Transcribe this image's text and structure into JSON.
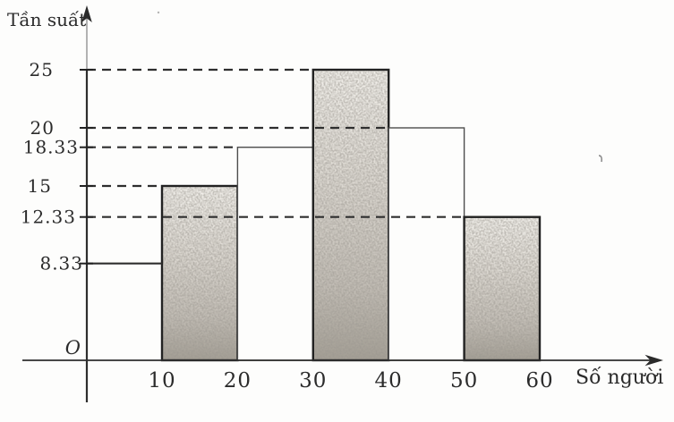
{
  "chart_data": {
    "type": "bar",
    "variant": "frequency-histogram",
    "title": "",
    "ylabel": "Tần suất",
    "xlabel": "Số người",
    "origin_label": "O",
    "x_tick_labels": [
      "10",
      "20",
      "30",
      "40",
      "50",
      "60"
    ],
    "y_tick_labels": [
      "25",
      "20",
      "18.33",
      "15",
      "12.33",
      "8.33"
    ],
    "bins": [
      [
        0,
        10
      ],
      [
        10,
        20
      ],
      [
        20,
        30
      ],
      [
        30,
        40
      ],
      [
        40,
        50
      ],
      [
        50,
        60
      ]
    ],
    "values": [
      8.33,
      15,
      18.33,
      25,
      20,
      12.33
    ],
    "bars": [
      {
        "from": 0,
        "to": 10,
        "value": 8.33,
        "style": "open-top-only"
      },
      {
        "from": 10,
        "to": 20,
        "value": 15,
        "style": "shaded"
      },
      {
        "from": 20,
        "to": 30,
        "value": 18.33,
        "style": "white"
      },
      {
        "from": 30,
        "to": 40,
        "value": 25,
        "style": "shaded"
      },
      {
        "from": 40,
        "to": 50,
        "value": 20,
        "style": "white"
      },
      {
        "from": 50,
        "to": 60,
        "value": 12.33,
        "style": "shaded"
      }
    ],
    "guides": [
      {
        "value": 25,
        "to_x": 30,
        "dashed": true
      },
      {
        "value": 20,
        "to_x": 40,
        "dashed": true
      },
      {
        "value": 18.33,
        "to_x": 20,
        "dashed": true
      },
      {
        "value": 15,
        "to_x": 10,
        "dashed": true
      },
      {
        "value": 12.33,
        "to_x": 50,
        "dashed": true
      },
      {
        "value": 8.33,
        "to_x": 10,
        "dashed": false
      }
    ],
    "xlim": [
      0,
      76
    ],
    "ylim": [
      0,
      30
    ],
    "grid": "dashed-guides-only",
    "legend": "none",
    "colors": {
      "ink": "#222222",
      "axis": "#2e2e2e",
      "paper": "#fdfdfc",
      "shaded_bar_light": "#f2f0eb",
      "shaded_bar_dark": "#a39e94"
    }
  }
}
